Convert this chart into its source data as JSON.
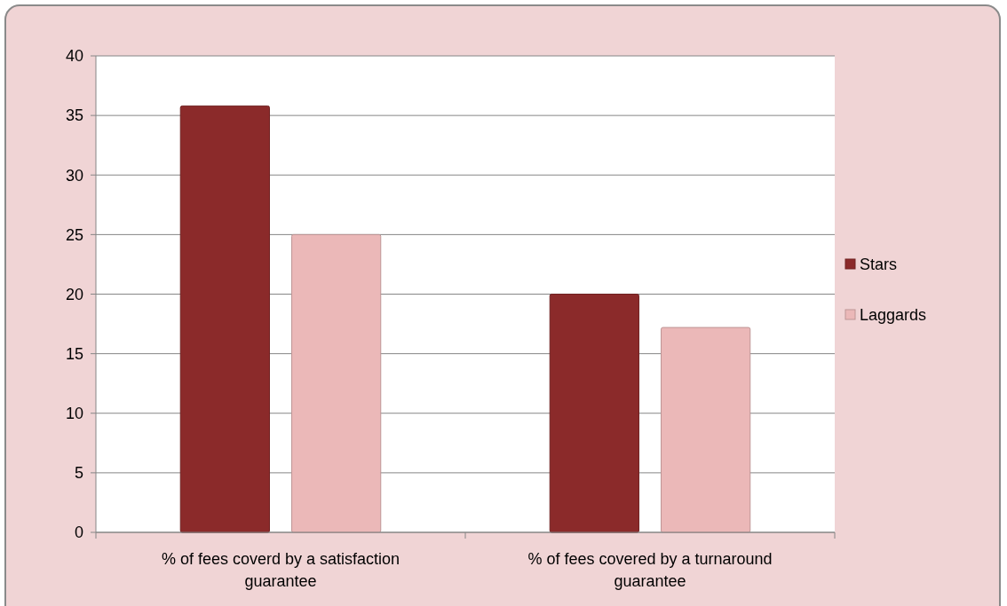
{
  "chart_data": {
    "type": "bar",
    "categories": [
      "% of fees coverd by a satisfaction guarantee",
      "% of fees covered by a turnaround guarantee"
    ],
    "series": [
      {
        "name": "Stars",
        "color": "#8b2a2a",
        "values": [
          35.8,
          20
        ]
      },
      {
        "name": "Laggards",
        "color": "#ebb8b8",
        "values": [
          25,
          17.2
        ]
      }
    ],
    "ylim": [
      0,
      40
    ],
    "yticks": [
      0,
      5,
      10,
      15,
      20,
      25,
      30,
      35,
      40
    ],
    "grid": "y",
    "legend": "right"
  }
}
